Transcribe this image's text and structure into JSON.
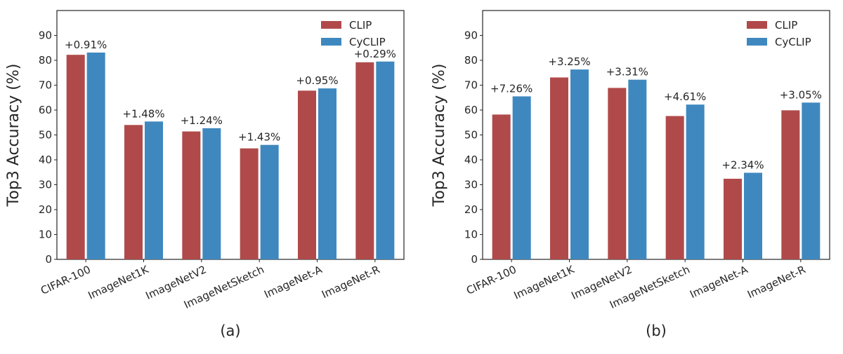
{
  "figure": {
    "colors": {
      "CLIP": "#b04a4a",
      "CyCLIP": "#3f88bf"
    }
  },
  "chart_data": [
    {
      "type": "bar",
      "panel_label": "(a)",
      "categories": [
        "CIFAR-100",
        "ImageNet1K",
        "ImageNetV2",
        "ImageNetSketch",
        "ImageNet-A",
        "ImageNet-R"
      ],
      "series": [
        {
          "name": "CLIP",
          "values": [
            82.2,
            54.0,
            51.4,
            44.6,
            67.8,
            79.2
          ]
        },
        {
          "name": "CyCLIP",
          "values": [
            83.1,
            55.4,
            52.7,
            46.0,
            68.7,
            79.5
          ]
        }
      ],
      "annotations": [
        "+0.91%",
        "+1.48%",
        "+1.24%",
        "+1.43%",
        "+0.95%",
        "+0.29%"
      ],
      "ylabel": "Top3 Accuracy (%)",
      "ylim": [
        0,
        100
      ],
      "yticks": [
        0,
        10,
        20,
        30,
        40,
        50,
        60,
        70,
        80,
        90
      ],
      "grid": false,
      "legend": "top-right"
    },
    {
      "type": "bar",
      "panel_label": "(b)",
      "categories": [
        "CIFAR-100",
        "ImageNet1K",
        "ImageNetV2",
        "ImageNetSketch",
        "ImageNet-A",
        "ImageNet-R"
      ],
      "series": [
        {
          "name": "CLIP",
          "values": [
            58.2,
            73.1,
            68.9,
            57.6,
            32.4,
            59.9
          ]
        },
        {
          "name": "CyCLIP",
          "values": [
            65.5,
            76.3,
            72.2,
            62.2,
            34.8,
            63.0
          ]
        }
      ],
      "annotations": [
        "+7.26%",
        "+3.25%",
        "+3.31%",
        "+4.61%",
        "+2.34%",
        "+3.05%"
      ],
      "ylabel": "Top3 Accuracy (%)",
      "ylim": [
        0,
        100
      ],
      "yticks": [
        0,
        10,
        20,
        30,
        40,
        50,
        60,
        70,
        80,
        90
      ],
      "grid": false,
      "legend": "top-right"
    }
  ]
}
